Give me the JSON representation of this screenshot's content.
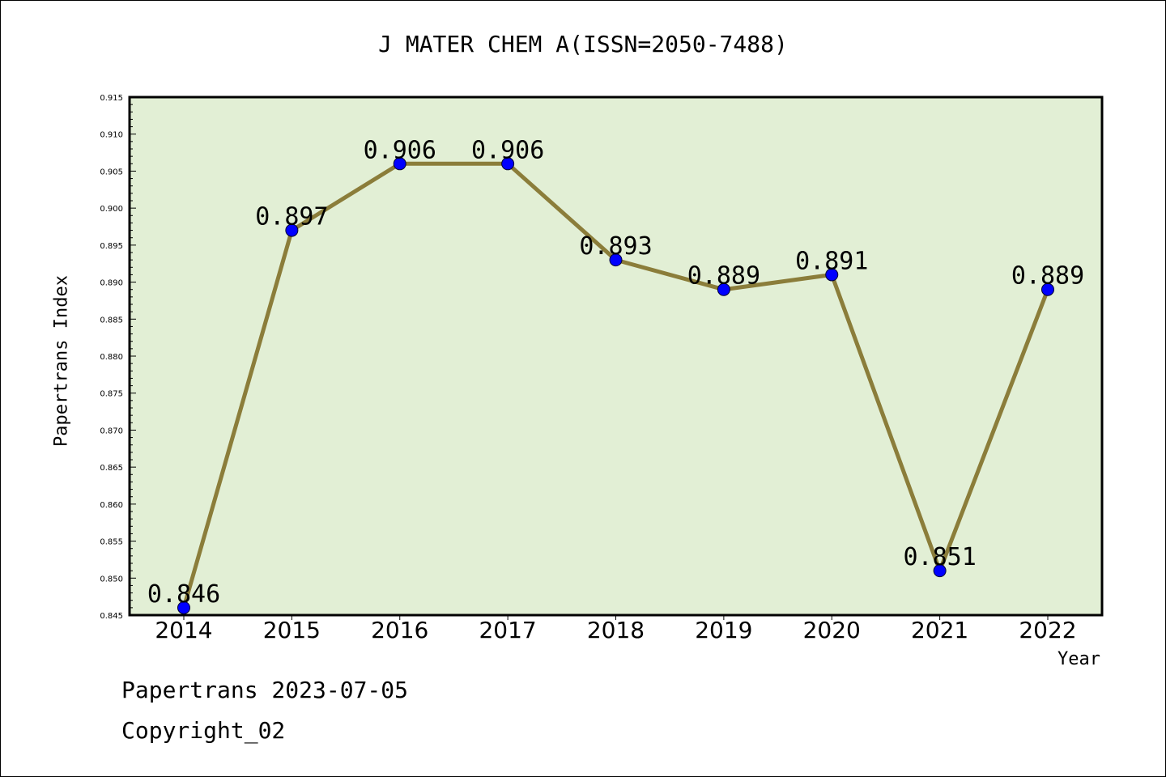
{
  "chart_data": {
    "type": "line",
    "title": "J MATER CHEM A(ISSN=2050-7488)",
    "xlabel": "Year",
    "ylabel": "Papertrans Index",
    "categories": [
      "2014",
      "2015",
      "2016",
      "2017",
      "2018",
      "2019",
      "2020",
      "2021",
      "2022"
    ],
    "values": [
      0.846,
      0.897,
      0.906,
      0.906,
      0.893,
      0.889,
      0.891,
      0.851,
      0.889
    ],
    "data_labels": [
      "0.846",
      "0.897",
      "0.906",
      "0.906",
      "0.893",
      "0.889",
      "0.891",
      "0.851",
      "0.889"
    ],
    "ylim": [
      0.845,
      0.915
    ],
    "y_ticks": [
      "0.845",
      "0.850",
      "0.855",
      "0.860",
      "0.865",
      "0.870",
      "0.875",
      "0.880",
      "0.885",
      "0.890",
      "0.895",
      "0.900",
      "0.905",
      "0.910",
      "0.915"
    ],
    "grid": false,
    "legend": "none",
    "colors": {
      "plot_background": "#e2efd5",
      "line": "#8b7d3a",
      "marker": "#0000ff"
    }
  },
  "footer": {
    "date_line": "Papertrans 2023-07-05",
    "copyright": "Copyright_02"
  }
}
